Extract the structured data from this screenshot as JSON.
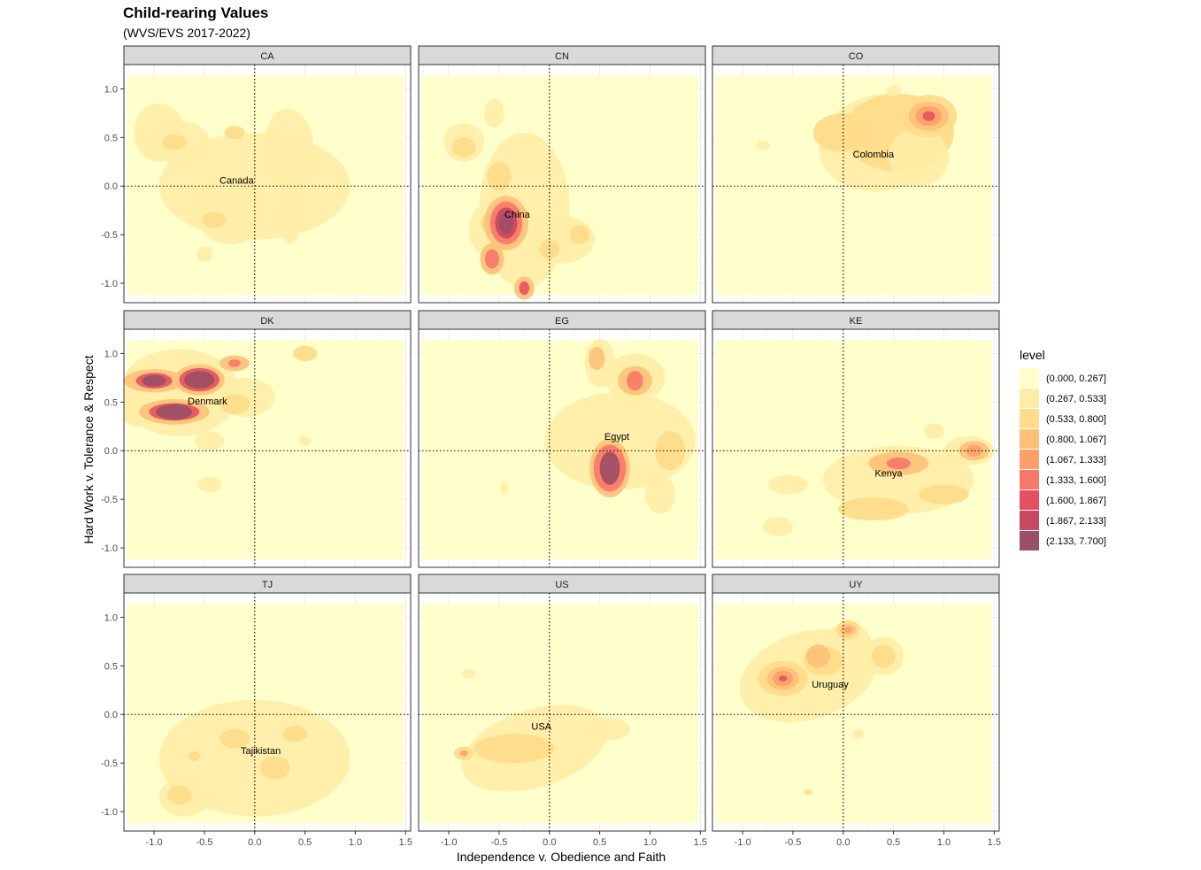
{
  "title": "Child-rearing Values",
  "subtitle": "(WVS/EVS 2017-2022)",
  "xlabel": "Independence v. Obedience and Faith",
  "ylabel": "Hard Work v. Tolerance & Respect",
  "legend": {
    "title": "level",
    "placement": "right",
    "items": [
      {
        "label": "(0.000, 0.267]",
        "color": "#FFFFCC"
      },
      {
        "label": "(0.267, 0.533]",
        "color": "#FFEDA6"
      },
      {
        "label": "(0.533, 0.800]",
        "color": "#FEDC8A"
      },
      {
        "label": "(0.800, 1.067]",
        "color": "#FEC078"
      },
      {
        "label": "(1.067, 1.333]",
        "color": "#FCA068"
      },
      {
        "label": "(1.333, 1.600]",
        "color": "#F9766A"
      },
      {
        "label": "(1.600, 1.867]",
        "color": "#E5505F"
      },
      {
        "label": "(1.867, 2.133]",
        "color": "#C84763"
      },
      {
        "label": "(2.133, 7.700]",
        "color": "#9A4F66"
      }
    ]
  },
  "chart_data": {
    "type": "heatmap",
    "facets": [
      {
        "code": "CA",
        "country": "Canada",
        "label_x": -0.18,
        "label_y": 0.06
      },
      {
        "code": "CN",
        "country": "China",
        "label_x": -0.32,
        "label_y": -0.29
      },
      {
        "code": "CO",
        "country": "Colombia",
        "label_x": 0.3,
        "label_y": 0.33
      },
      {
        "code": "DK",
        "country": "Denmark",
        "label_x": -0.47,
        "label_y": 0.51
      },
      {
        "code": "EG",
        "country": "Egypt",
        "label_x": 0.67,
        "label_y": 0.15
      },
      {
        "code": "KE",
        "country": "Kenya",
        "label_x": 0.45,
        "label_y": -0.23
      },
      {
        "code": "TJ",
        "country": "Tajikistan",
        "label_x": 0.06,
        "label_y": -0.37
      },
      {
        "code": "US",
        "country": "USA",
        "label_x": -0.08,
        "label_y": -0.12
      },
      {
        "code": "UY",
        "country": "Uruguay",
        "label_x": -0.13,
        "label_y": 0.31
      }
    ],
    "xlim": [
      -1.3,
      1.55
    ],
    "ylim": [
      -1.2,
      1.25
    ],
    "xticks": [
      "-1.0",
      "-0.5",
      "0.0",
      "0.5",
      "1.0",
      "1.5"
    ],
    "yticks": [
      "-1.0",
      "-0.5",
      "0.0",
      "0.5",
      "1.0"
    ],
    "reference_lines": {
      "x": 0,
      "y": 0,
      "style": "dotted"
    },
    "density_fill_range": {
      "x": [
        -1.27,
        1.48
      ],
      "y": [
        -1.12,
        1.14
      ]
    },
    "grid": true
  }
}
